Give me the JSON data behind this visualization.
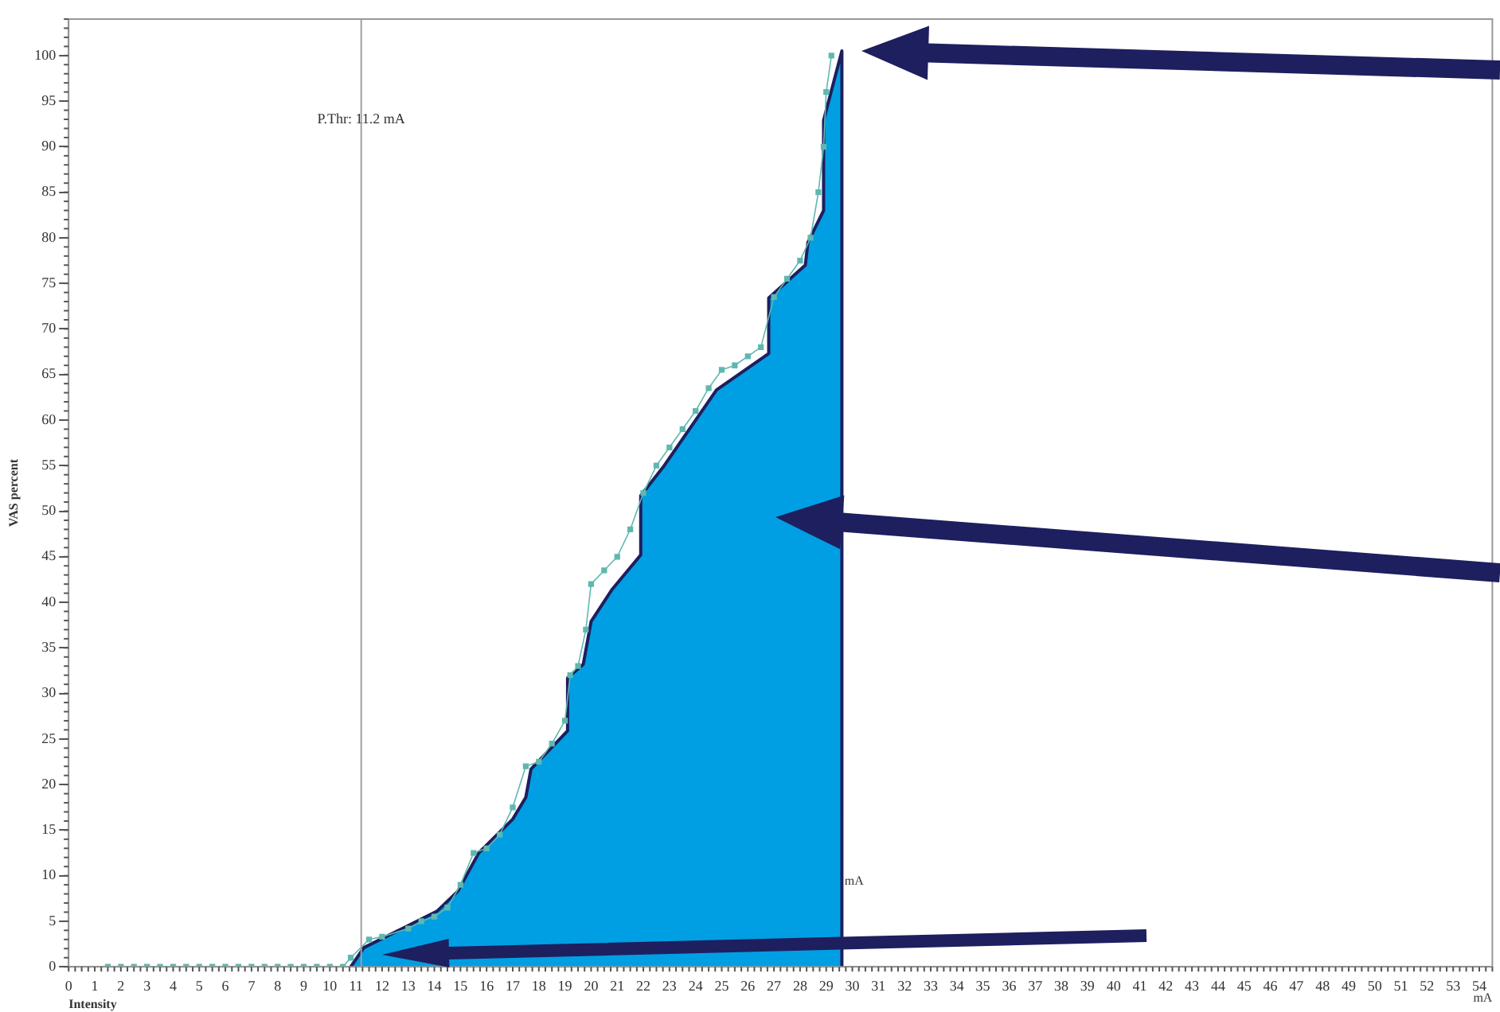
{
  "chart_data": {
    "type": "area",
    "xlabel": "Intensity",
    "ylabel": "VAS percent",
    "xlim": [
      0,
      54.5
    ],
    "ylim": [
      0,
      104
    ],
    "xticks": [
      0,
      1,
      2,
      3,
      4,
      5,
      6,
      7,
      8,
      9,
      10,
      11,
      12,
      13,
      14,
      15,
      16,
      17,
      18,
      19,
      20,
      21,
      22,
      23,
      24,
      25,
      26,
      27,
      28,
      29,
      30,
      31,
      32,
      33,
      34,
      35,
      36,
      37,
      38,
      39,
      40,
      41,
      42,
      43,
      44,
      45,
      46,
      47,
      48,
      49,
      50,
      51,
      52,
      53,
      54
    ],
    "yticks": [
      0,
      5,
      10,
      15,
      20,
      25,
      30,
      35,
      40,
      45,
      50,
      55,
      60,
      65,
      70,
      75,
      80,
      85,
      90,
      95,
      100
    ],
    "grid": false,
    "legend": false,
    "ref_lines": [
      {
        "axis": "x",
        "value": 11.2,
        "label": "P.Thr: 11.2 mA",
        "color": "#a0a0a0"
      }
    ],
    "annotations": [
      "mA",
      "mA"
    ],
    "series": [
      {
        "color": "#009fe3",
        "x": [
          10.8,
          11.3,
          14.1,
          14.9,
          15.7,
          17.0,
          17.5,
          17.7,
          19.1,
          19.1,
          19.7,
          20.0,
          20.8,
          21.9,
          21.9,
          22.8,
          24.8,
          26.8,
          26.8,
          28.2,
          28.3,
          28.9,
          28.9,
          29.6,
          29.6
        ],
        "values": [
          0,
          2.1,
          6.1,
          8.3,
          12.5,
          16.2,
          18.6,
          21.7,
          25.9,
          31.7,
          33.2,
          37.9,
          41.4,
          45.2,
          51.7,
          55,
          63.3,
          67.3,
          73.4,
          77,
          79.5,
          83,
          92.9,
          100.5,
          0
        ]
      },
      {
        "type": "line",
        "color": "#5fb8b0",
        "marker": "square",
        "x": [
          1.5,
          2,
          2.5,
          3,
          3.5,
          4,
          4.5,
          5,
          5.5,
          6,
          6.5,
          7,
          7.5,
          8,
          8.5,
          9,
          9.5,
          10,
          10.5,
          10.8,
          11.5,
          12,
          13,
          13.5,
          14,
          14.5,
          15,
          15.5,
          16,
          16.5,
          17,
          17.5,
          18,
          18.5,
          19,
          19.2,
          19.5,
          19.8,
          20,
          20.5,
          21,
          21.5,
          22,
          22.5,
          23,
          23.5,
          24,
          24.5,
          25,
          25.5,
          26,
          26.5,
          27,
          27.5,
          28,
          28.4,
          28.7,
          28.9,
          29.0,
          29.2
        ],
        "values": [
          0,
          0,
          0,
          0,
          0,
          0,
          0,
          0,
          0,
          0,
          0,
          0,
          0,
          0,
          0,
          0,
          0,
          0,
          0,
          1,
          3,
          3.3,
          4.2,
          5,
          5.5,
          6.5,
          9,
          12.5,
          13,
          14.5,
          17.5,
          22,
          22.5,
          24.5,
          27,
          32,
          33,
          37,
          42,
          43.5,
          45,
          48,
          52,
          55,
          57,
          59,
          61,
          63.5,
          65.5,
          66,
          67,
          68,
          73.5,
          75.5,
          77.5,
          80,
          85,
          90,
          96,
          100
        ]
      }
    ]
  }
}
